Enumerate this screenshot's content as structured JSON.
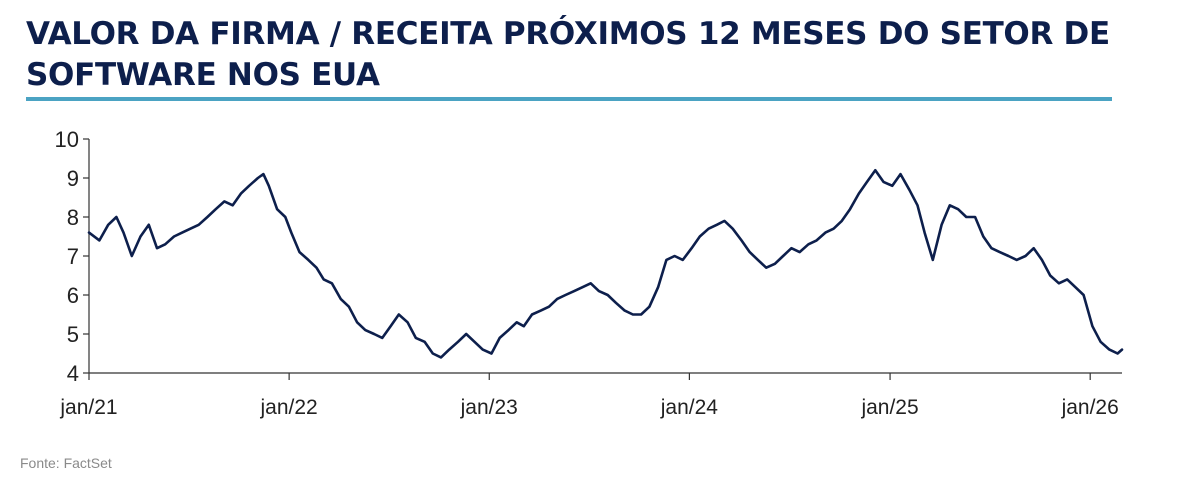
{
  "colors": {
    "title": "#0d1f4c",
    "accent_rule": "#4ba3c3",
    "series_line": "#0d1f4c",
    "axis": "#333333",
    "source_text": "#8a8a8a"
  },
  "chart_data": {
    "type": "line",
    "title": "VALOR DA FIRMA / RECEITA PRÓXIMOS 12 MESES DO SETOR DE SOFTWARE NOS EUA",
    "xlabel": "",
    "ylabel": "",
    "source": "Fonte: FactSet",
    "ylim": [
      4,
      10
    ],
    "xlim": [
      "2021-01-01",
      "2026-02-28"
    ],
    "grid": false,
    "y_ticks": [
      "4",
      "5",
      "6",
      "7",
      "8",
      "9",
      "10"
    ],
    "x_ticks": [
      {
        "label": "jan/21",
        "date": "2021-01-01"
      },
      {
        "label": "jan/22",
        "date": "2022-01-01"
      },
      {
        "label": "jan/23",
        "date": "2023-01-01"
      },
      {
        "label": "jan/24",
        "date": "2024-01-01"
      },
      {
        "label": "jan/25",
        "date": "2025-01-01"
      },
      {
        "label": "jan/26",
        "date": "2026-01-01"
      }
    ],
    "series": [
      {
        "x": [
          "2021-01-01",
          "2021-01-20",
          "2021-02-05",
          "2021-02-20",
          "2021-03-05",
          "2021-03-20",
          "2021-04-05",
          "2021-04-20",
          "2021-05-05",
          "2021-05-20",
          "2021-06-05",
          "2021-06-20",
          "2021-07-05",
          "2021-07-20",
          "2021-08-05",
          "2021-08-20",
          "2021-09-05",
          "2021-09-20",
          "2021-10-05",
          "2021-10-20",
          "2021-11-05",
          "2021-11-15",
          "2021-11-25",
          "2021-12-10",
          "2021-12-25",
          "2022-01-05",
          "2022-01-20",
          "2022-02-05",
          "2022-02-20",
          "2022-03-05",
          "2022-03-20",
          "2022-04-05",
          "2022-04-20",
          "2022-05-05",
          "2022-05-20",
          "2022-06-05",
          "2022-06-20",
          "2022-07-05",
          "2022-07-20",
          "2022-08-05",
          "2022-08-20",
          "2022-09-05",
          "2022-09-20",
          "2022-10-05",
          "2022-10-20",
          "2022-11-05",
          "2022-11-20",
          "2022-12-05",
          "2022-12-20",
          "2023-01-05",
          "2023-01-20",
          "2023-02-05",
          "2023-02-20",
          "2023-03-05",
          "2023-03-20",
          "2023-04-05",
          "2023-04-20",
          "2023-05-05",
          "2023-05-20",
          "2023-06-05",
          "2023-06-20",
          "2023-07-05",
          "2023-07-20",
          "2023-08-05",
          "2023-08-20",
          "2023-09-05",
          "2023-09-20",
          "2023-10-05",
          "2023-10-20",
          "2023-11-05",
          "2023-11-20",
          "2023-12-05",
          "2023-12-20",
          "2024-01-05",
          "2024-01-20",
          "2024-02-05",
          "2024-02-20",
          "2024-03-05",
          "2024-03-20",
          "2024-04-05",
          "2024-04-20",
          "2024-05-05",
          "2024-05-20",
          "2024-06-05",
          "2024-06-20",
          "2024-07-05",
          "2024-07-20",
          "2024-08-05",
          "2024-08-20",
          "2024-09-05",
          "2024-09-20",
          "2024-10-05",
          "2024-10-20",
          "2024-11-05",
          "2024-11-20",
          "2024-12-05",
          "2024-12-20",
          "2025-01-05",
          "2025-01-20",
          "2025-02-05",
          "2025-02-20",
          "2025-03-05",
          "2025-03-20",
          "2025-04-05",
          "2025-04-20",
          "2025-05-05",
          "2025-05-20",
          "2025-06-05",
          "2025-06-20",
          "2025-07-05",
          "2025-07-20",
          "2025-08-05",
          "2025-08-20",
          "2025-09-05",
          "2025-09-20",
          "2025-10-05",
          "2025-10-20",
          "2025-11-05",
          "2025-11-20",
          "2025-12-05",
          "2025-12-20",
          "2026-01-05",
          "2026-01-20",
          "2026-02-05",
          "2026-02-20",
          "2026-02-28"
        ],
        "values": [
          7.6,
          7.4,
          7.8,
          8.0,
          7.6,
          7.0,
          7.5,
          7.8,
          7.2,
          7.3,
          7.5,
          7.6,
          7.7,
          7.8,
          8.0,
          8.2,
          8.4,
          8.3,
          8.6,
          8.8,
          9.0,
          9.1,
          8.8,
          8.2,
          8.0,
          7.6,
          7.1,
          6.9,
          6.7,
          6.4,
          6.3,
          5.9,
          5.7,
          5.3,
          5.1,
          5.0,
          4.9,
          5.2,
          5.5,
          5.3,
          4.9,
          4.8,
          4.5,
          4.4,
          4.6,
          4.8,
          5.0,
          4.8,
          4.6,
          4.5,
          4.9,
          5.1,
          5.3,
          5.2,
          5.5,
          5.6,
          5.7,
          5.9,
          6.0,
          6.1,
          6.2,
          6.3,
          6.1,
          6.0,
          5.8,
          5.6,
          5.5,
          5.5,
          5.7,
          6.2,
          6.9,
          7.0,
          6.9,
          7.2,
          7.5,
          7.7,
          7.8,
          7.9,
          7.7,
          7.4,
          7.1,
          6.9,
          6.7,
          6.8,
          7.0,
          7.2,
          7.1,
          7.3,
          7.4,
          7.6,
          7.7,
          7.9,
          8.2,
          8.6,
          8.9,
          9.2,
          8.9,
          8.8,
          9.1,
          8.7,
          8.3,
          7.6,
          6.9,
          7.8,
          8.3,
          8.2,
          8.0,
          8.0,
          7.5,
          7.2,
          7.1,
          7.0,
          6.9,
          7.0,
          7.2,
          6.9,
          6.5,
          6.3,
          6.4,
          6.2,
          6.0,
          5.2,
          4.8,
          4.6,
          4.5,
          4.6
        ]
      }
    ]
  }
}
